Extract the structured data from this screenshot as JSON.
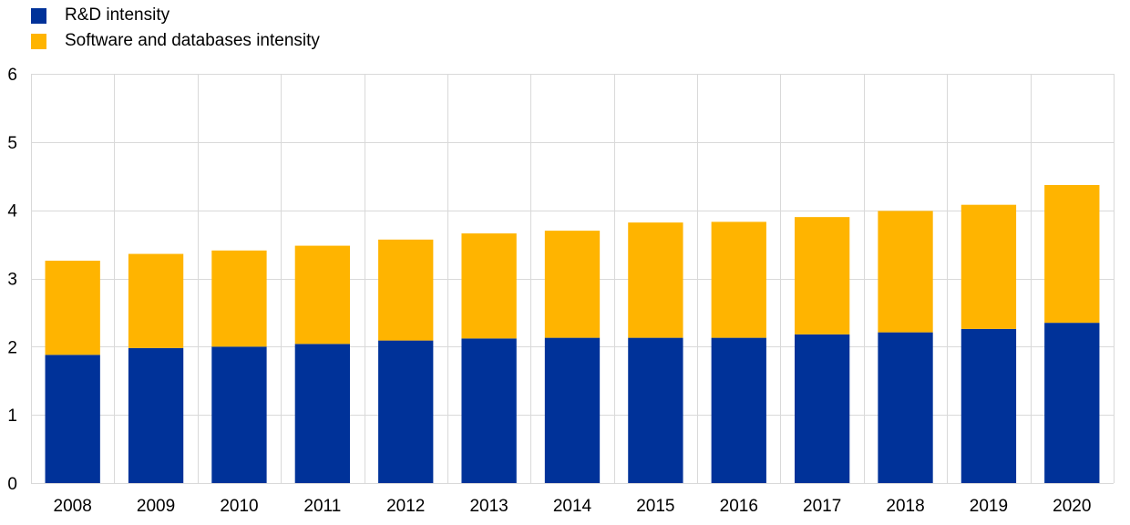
{
  "chart_data": {
    "type": "bar",
    "stacked": true,
    "categories": [
      "2008",
      "2009",
      "2010",
      "2011",
      "2012",
      "2013",
      "2014",
      "2015",
      "2016",
      "2017",
      "2018",
      "2019",
      "2020"
    ],
    "series": [
      {
        "name": "R&D intensity",
        "color": "#003299",
        "values": [
          1.88,
          1.98,
          2.0,
          2.04,
          2.09,
          2.12,
          2.13,
          2.13,
          2.13,
          2.18,
          2.21,
          2.26,
          2.35
        ]
      },
      {
        "name": "Software and databases intensity",
        "color": "#ffb400",
        "values": [
          1.38,
          1.38,
          1.41,
          1.44,
          1.48,
          1.54,
          1.57,
          1.69,
          1.7,
          1.72,
          1.78,
          1.82,
          2.02
        ]
      }
    ],
    "ylim": [
      0,
      6
    ],
    "yticks": [
      "0",
      "1",
      "2",
      "3",
      "4",
      "5",
      "6"
    ],
    "grid": true,
    "gridline_color": "#d9d9d9",
    "legend_position": "top-left",
    "title": "",
    "xlabel": "",
    "ylabel": ""
  }
}
